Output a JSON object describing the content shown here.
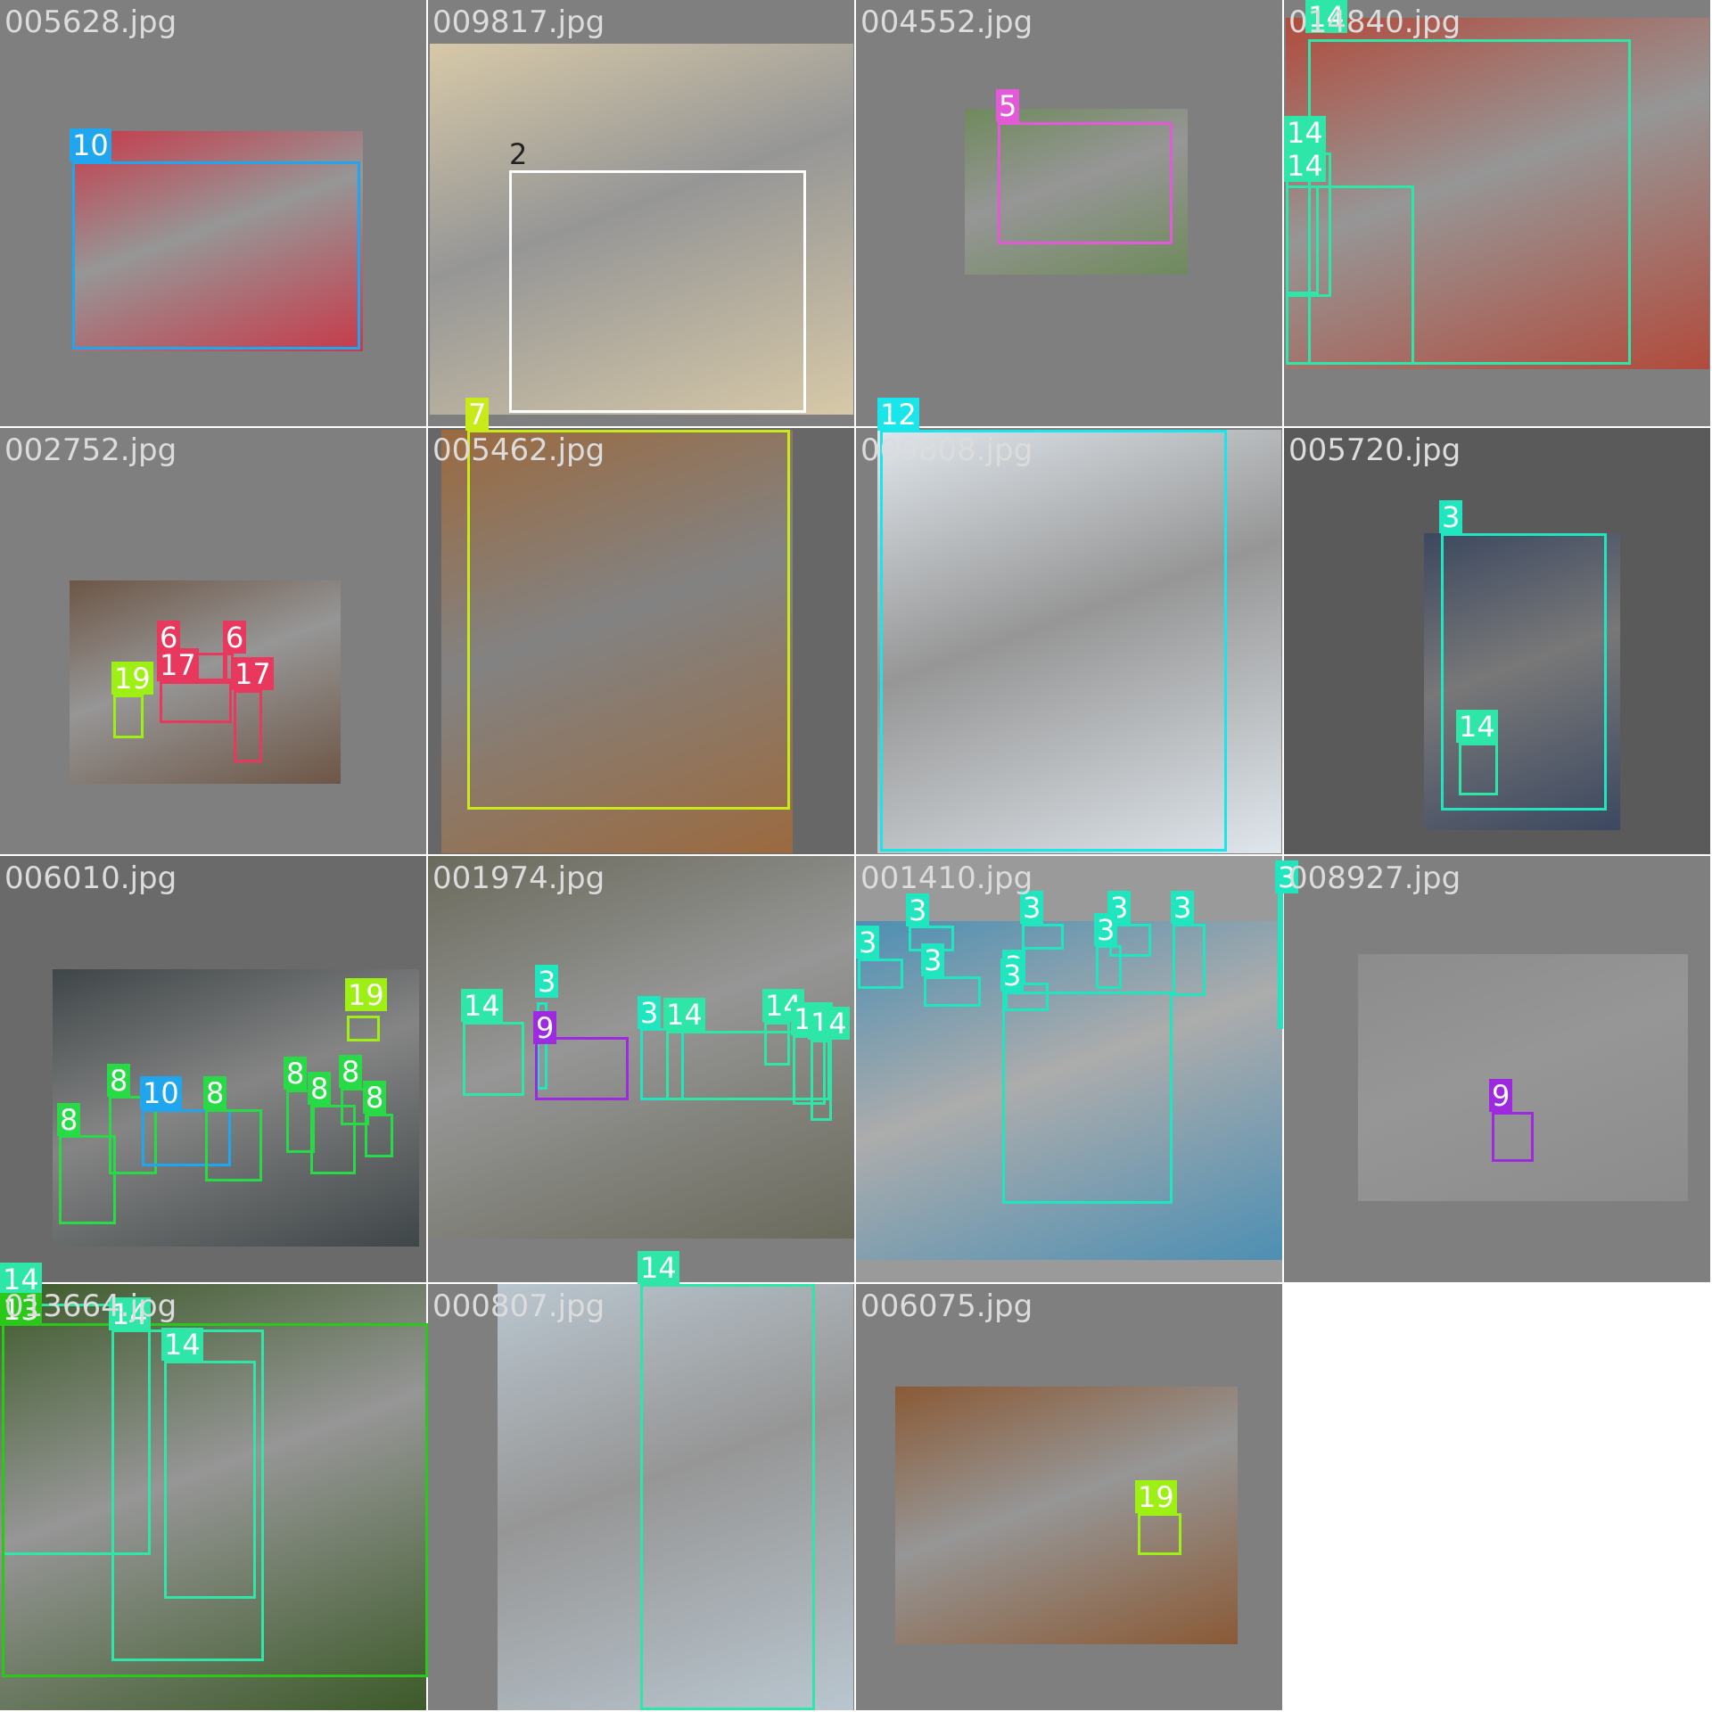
{
  "tiles": [
    {
      "filename": "005628.jpg",
      "bg": "#7f7f7f",
      "photo": "#c73a4a"
    },
    {
      "filename": "009817.jpg",
      "bg": "#7f7f7f",
      "photo": "#d7c9a8"
    },
    {
      "filename": "004552.jpg",
      "bg": "#7f7f7f",
      "photo": "#6f8a5c"
    },
    {
      "filename": "014840.jpg",
      "bg": "#7f7f7f",
      "photo": "#b14b3c"
    },
    {
      "filename": "002752.jpg",
      "bg": "#7f7f7f",
      "photo": "#6d5646"
    },
    {
      "filename": "005462.jpg",
      "bg": "#676767",
      "photo": "#9b6a3f"
    },
    {
      "filename": "009808.jpg",
      "bg": "#7f7f7f",
      "photo": "#dfe6ec"
    },
    {
      "filename": "005720.jpg",
      "bg": "#5a5a5a",
      "photo": "#3c4860"
    },
    {
      "filename": "006010.jpg",
      "bg": "#6a6a6a",
      "photo": "#3f4648"
    },
    {
      "filename": "001974.jpg",
      "bg": "#7f7f7f",
      "photo": "#6a6a5c"
    },
    {
      "filename": "001410.jpg",
      "bg": "#9a9a9a",
      "photo": "#4d8fb3"
    },
    {
      "filename": "008927.jpg",
      "bg": "#7f7f7f",
      "photo": "#8c8c8c"
    },
    {
      "filename": "013664.jpg",
      "bg": "#7f7f7f",
      "photo": "#3d5a2a"
    },
    {
      "filename": "000807.jpg",
      "bg": "#7f7f7f",
      "photo": "#b9c6cf"
    },
    {
      "filename": "006075.jpg",
      "bg": "#7f7f7f",
      "photo": "#8a5a36"
    }
  ],
  "class_colors": {
    "2": "#ffffff",
    "3": "#20e6c0",
    "5": "#e25ad8",
    "6": "#e8385e",
    "7": "#c8ea18",
    "8": "#27da46",
    "9": "#9e2ae0",
    "10": "#20a6ee",
    "12": "#18e6ea",
    "13": "#2ac818",
    "14": "#2ee6a8",
    "17": "#e8385e",
    "19": "#9ef014"
  },
  "boxes": [
    {
      "label": "10",
      "color": "#20a6ee"
    },
    {
      "label": "2",
      "color": "#ffffff"
    },
    {
      "label": "5",
      "color": "#e25ad8"
    },
    {
      "label": "14",
      "color": "#2ee6a8"
    },
    {
      "label": "14",
      "color": "#2ee6a8"
    },
    {
      "label": "14",
      "color": "#2ee6a8"
    },
    {
      "label": "14",
      "color": "#2ee6a8"
    },
    {
      "label": "6",
      "color": "#e8385e"
    },
    {
      "label": "6",
      "color": "#e8385e"
    },
    {
      "label": "17",
      "color": "#e8385e"
    },
    {
      "label": "17",
      "color": "#e8385e"
    },
    {
      "label": "19",
      "color": "#9ef014"
    },
    {
      "label": "7",
      "color": "#c8ea18"
    },
    {
      "label": "12",
      "color": "#18e6ea"
    },
    {
      "label": "3",
      "color": "#20e6c0"
    },
    {
      "label": "14",
      "color": "#2ee6a8"
    },
    {
      "label": "19",
      "color": "#9ef014"
    },
    {
      "label": "8",
      "color": "#27da46"
    },
    {
      "label": "8",
      "color": "#27da46"
    },
    {
      "label": "10",
      "color": "#20a6ee"
    },
    {
      "label": "8",
      "color": "#27da46"
    },
    {
      "label": "8",
      "color": "#27da46"
    },
    {
      "label": "8",
      "color": "#27da46"
    },
    {
      "label": "8",
      "color": "#27da46"
    },
    {
      "label": "8",
      "color": "#27da46"
    },
    {
      "label": "14",
      "color": "#2ee6a8"
    },
    {
      "label": "3",
      "color": "#20e6c0"
    },
    {
      "label": "9",
      "color": "#9e2ae0"
    },
    {
      "label": "3",
      "color": "#20e6c0"
    },
    {
      "label": "14",
      "color": "#2ee6a8"
    },
    {
      "label": "14",
      "color": "#2ee6a8"
    },
    {
      "label": "14",
      "color": "#2ee6a8"
    },
    {
      "label": "14",
      "color": "#2ee6a8"
    },
    {
      "label": "3",
      "color": "#20e6c0"
    },
    {
      "label": "3",
      "color": "#20e6c0"
    },
    {
      "label": "3",
      "color": "#20e6c0"
    },
    {
      "label": "3",
      "color": "#20e6c0"
    },
    {
      "label": "3",
      "color": "#20e6c0"
    },
    {
      "label": "3",
      "color": "#20e6c0"
    },
    {
      "label": "3",
      "color": "#20e6c0"
    },
    {
      "label": "3",
      "color": "#20e6c0"
    },
    {
      "label": "3",
      "color": "#20e6c0"
    },
    {
      "label": "3",
      "color": "#20e6c0"
    },
    {
      "label": "9",
      "color": "#9e2ae0"
    },
    {
      "label": "14",
      "color": "#2ee6a8"
    },
    {
      "label": "13",
      "color": "#2ac818"
    },
    {
      "label": "14",
      "color": "#2ee6a8"
    },
    {
      "label": "14",
      "color": "#2ee6a8"
    },
    {
      "label": "14",
      "color": "#2ee6a8"
    },
    {
      "label": "19",
      "color": "#9ef014"
    }
  ]
}
